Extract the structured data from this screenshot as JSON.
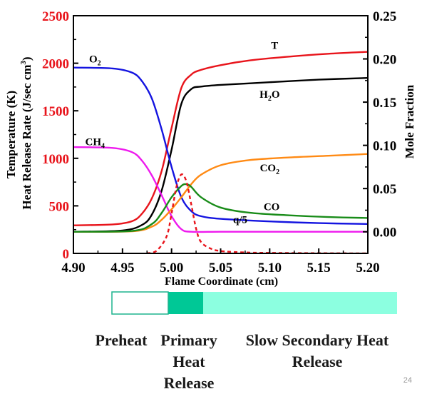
{
  "chart_data": {
    "type": "line",
    "xlabel": "Flame Coordinate (cm)",
    "ylabel_left": "Temperature (K)",
    "ylabel_left2": "Heat Release Rate (J/sec cm",
    "ylabel_left2_sup": "3",
    "ylabel_left2_close": ")",
    "ylabel_right": "Mole Fraction",
    "xlim": [
      4.9,
      5.2
    ],
    "ylim_left": [
      0,
      2500
    ],
    "ylim_right": [
      -0.025,
      0.25
    ],
    "x_ticks": [
      "4.90",
      "4.95",
      "5.00",
      "5.05",
      "5.10",
      "5.15",
      "5.20"
    ],
    "y_left_ticks": [
      "0",
      "500",
      "1000",
      "1500",
      "2000",
      "2500"
    ],
    "y_right_ticks": [
      "0.00",
      "0.05",
      "0.10",
      "0.15",
      "0.20",
      "0.25"
    ],
    "grid": false,
    "series": [
      {
        "name": "T",
        "label_main": "T",
        "label_sub": "",
        "axis": "left",
        "color": "#e8141b",
        "dash": false,
        "x": [
          4.9,
          4.94,
          4.96,
          4.97,
          4.98,
          4.99,
          5.0,
          5.01,
          5.02,
          5.03,
          5.05,
          5.08,
          5.12,
          5.16,
          5.2
        ],
        "y": [
          295,
          305,
          340,
          420,
          580,
          870,
          1320,
          1740,
          1880,
          1930,
          1980,
          2030,
          2070,
          2100,
          2120
        ]
      },
      {
        "name": "H2O",
        "label_main": "H",
        "label_sub": "2",
        "label_tail": "O",
        "axis": "right",
        "color": "#000000",
        "dash": false,
        "x": [
          4.9,
          4.95,
          4.97,
          4.98,
          4.99,
          5.0,
          5.01,
          5.02,
          5.03,
          5.05,
          5.1,
          5.15,
          5.2
        ],
        "y": [
          0.0,
          0.0015,
          0.008,
          0.02,
          0.048,
          0.095,
          0.148,
          0.165,
          0.168,
          0.17,
          0.173,
          0.176,
          0.178
        ]
      },
      {
        "name": "O2",
        "label_main": "O",
        "label_sub": "2",
        "axis": "right",
        "color": "#1414e0",
        "dash": false,
        "x": [
          4.9,
          4.94,
          4.96,
          4.97,
          4.98,
          4.99,
          5.0,
          5.01,
          5.02,
          5.03,
          5.05,
          5.1,
          5.15,
          5.2
        ],
        "y": [
          0.19,
          0.189,
          0.184,
          0.174,
          0.154,
          0.118,
          0.075,
          0.04,
          0.024,
          0.018,
          0.015,
          0.012,
          0.01,
          0.009
        ]
      },
      {
        "name": "CH4",
        "label_main": "CH",
        "label_sub": "4",
        "axis": "right",
        "color": "#ee1aee",
        "dash": false,
        "x": [
          4.9,
          4.94,
          4.96,
          4.97,
          4.98,
          4.99,
          5.0,
          5.01,
          5.02,
          5.05,
          5.1,
          5.2
        ],
        "y": [
          0.098,
          0.097,
          0.092,
          0.082,
          0.065,
          0.042,
          0.018,
          0.003,
          0.0,
          0.0,
          0.0,
          0.0
        ]
      },
      {
        "name": "CO2",
        "label_main": "CO",
        "label_sub": "2",
        "axis": "right",
        "color": "#ff8a14",
        "dash": false,
        "x": [
          4.9,
          4.96,
          4.98,
          4.99,
          5.0,
          5.01,
          5.02,
          5.03,
          5.05,
          5.08,
          5.12,
          5.16,
          5.2
        ],
        "y": [
          0.0,
          0.0005,
          0.006,
          0.014,
          0.026,
          0.04,
          0.055,
          0.066,
          0.077,
          0.083,
          0.086,
          0.088,
          0.09
        ]
      },
      {
        "name": "CO",
        "label_main": "CO",
        "label_sub": "",
        "axis": "right",
        "color": "#198c19",
        "dash": false,
        "x": [
          4.9,
          4.96,
          4.98,
          4.99,
          5.0,
          5.01,
          5.015,
          5.02,
          5.03,
          5.05,
          5.08,
          5.12,
          5.16,
          5.2
        ],
        "y": [
          0.0,
          0.001,
          0.009,
          0.022,
          0.04,
          0.053,
          0.055,
          0.052,
          0.04,
          0.028,
          0.022,
          0.019,
          0.017,
          0.016
        ]
      },
      {
        "name": "q/5",
        "label_main": "q/5",
        "label_sub": "",
        "axis": "left",
        "color": "#e8141b",
        "dash": true,
        "x": [
          4.975,
          4.985,
          4.995,
          5.0,
          5.005,
          5.01,
          5.015,
          5.02,
          5.025,
          5.03,
          5.04,
          5.05,
          5.07,
          5.1,
          5.2
        ],
        "y": [
          0,
          30,
          180,
          420,
          700,
          830,
          760,
          520,
          260,
          120,
          50,
          25,
          12,
          5,
          0
        ]
      }
    ]
  },
  "zones": {
    "preheat_label": "Preheat",
    "primary_label": "Primary\nHeat\nRelease",
    "secondary_label": "Slow Secondary Heat\nRelease",
    "colors": {
      "preheat_fill": "#ffffff",
      "preheat_border": "#1db38e",
      "primary": "#00c896",
      "secondary": "#8cffe0"
    }
  },
  "page_number": "24"
}
